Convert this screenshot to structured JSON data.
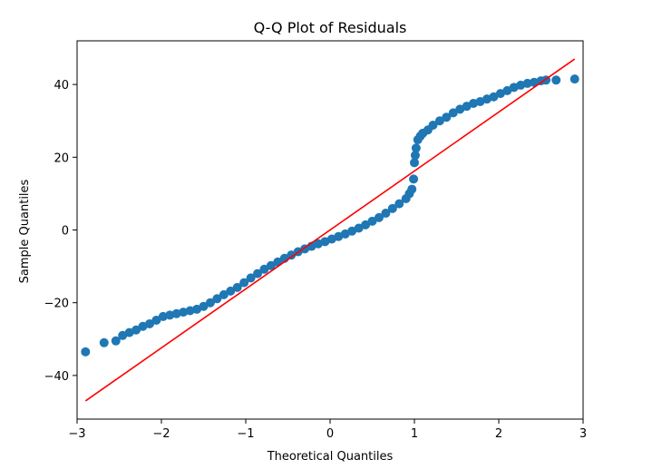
{
  "chart_data": {
    "type": "scatter",
    "title": "Q-Q Plot of Residuals",
    "xlabel": "Theoretical Quantiles",
    "ylabel": "Sample Quantiles",
    "xlim": [
      -3.0,
      3.0
    ],
    "ylim": [
      -52,
      52
    ],
    "xticks": [
      -3,
      -2,
      -1,
      0,
      1,
      2,
      3
    ],
    "xtick_labels": [
      "−3",
      "−2",
      "−1",
      "0",
      "1",
      "2",
      "3"
    ],
    "yticks": [
      -40,
      -20,
      0,
      20,
      40
    ],
    "ytick_labels": [
      "−40",
      "−20",
      "0",
      "20",
      "40"
    ],
    "grid": false,
    "colors": {
      "points": "#1f77b4",
      "reference_line": "#ff0000"
    },
    "reference_line": {
      "x": [
        -2.9,
        2.9
      ],
      "y": [
        -47,
        47
      ]
    },
    "series": [
      {
        "marker": "circle",
        "x": [
          -2.9,
          -2.68,
          -2.54,
          -2.46,
          -2.38,
          -2.3,
          -2.22,
          -2.14,
          -2.06,
          -1.98,
          -1.9,
          -1.82,
          -1.74,
          -1.66,
          -1.58,
          -1.5,
          -1.42,
          -1.34,
          -1.26,
          -1.18,
          -1.1,
          -1.02,
          -0.94,
          -0.86,
          -0.78,
          -0.7,
          -0.62,
          -0.54,
          -0.46,
          -0.38,
          -0.3,
          -0.22,
          -0.14,
          -0.06,
          0.02,
          0.1,
          0.18,
          0.26,
          0.34,
          0.42,
          0.5,
          0.58,
          0.66,
          0.74,
          0.82,
          0.9,
          0.94,
          0.97,
          0.99,
          1.0,
          1.01,
          1.02,
          1.04,
          1.07,
          1.1,
          1.16,
          1.22,
          1.3,
          1.38,
          1.46,
          1.54,
          1.62,
          1.7,
          1.78,
          1.86,
          1.94,
          2.02,
          2.1,
          2.18,
          2.26,
          2.34,
          2.42,
          2.5,
          2.56,
          2.68,
          2.9
        ],
        "y": [
          -33.5,
          -31.0,
          -30.5,
          -29.0,
          -28.2,
          -27.5,
          -26.5,
          -25.8,
          -24.8,
          -23.8,
          -23.4,
          -23.0,
          -22.6,
          -22.2,
          -21.8,
          -21.0,
          -20.0,
          -18.9,
          -17.8,
          -16.8,
          -15.8,
          -14.5,
          -13.2,
          -12.0,
          -10.8,
          -9.8,
          -8.8,
          -7.8,
          -6.9,
          -6.0,
          -5.2,
          -4.5,
          -3.8,
          -3.2,
          -2.5,
          -1.8,
          -1.1,
          -0.3,
          0.5,
          1.4,
          2.4,
          3.4,
          4.6,
          5.9,
          7.2,
          8.6,
          10.0,
          11.2,
          14.0,
          18.5,
          20.5,
          22.5,
          24.8,
          25.8,
          26.6,
          27.5,
          28.8,
          30.0,
          31.0,
          32.2,
          33.2,
          34.0,
          34.8,
          35.3,
          36.0,
          36.6,
          37.5,
          38.3,
          39.2,
          39.8,
          40.3,
          40.6,
          41.0,
          41.2,
          41.2,
          41.5
        ]
      }
    ]
  }
}
